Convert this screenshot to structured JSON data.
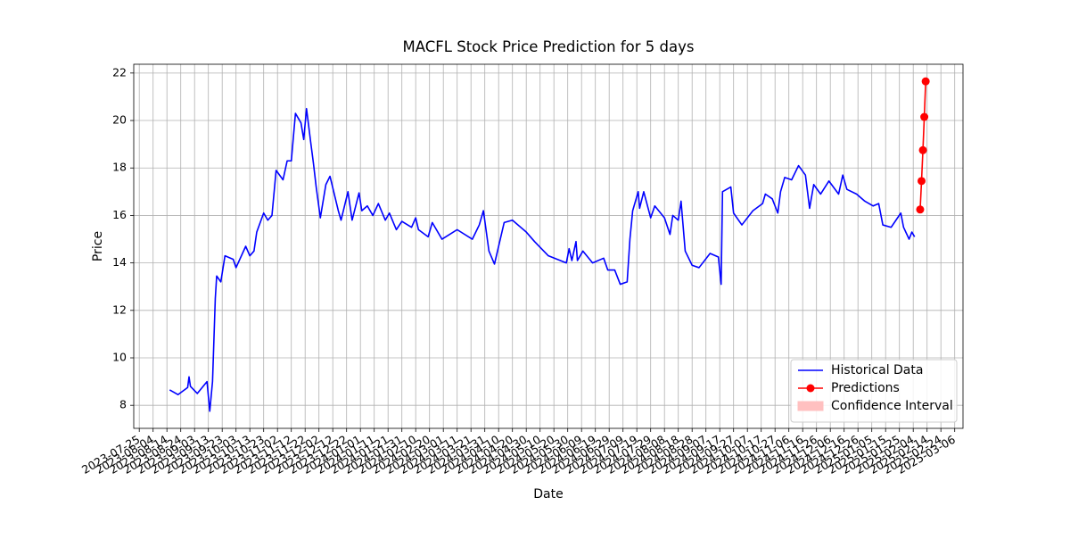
{
  "chart_data": {
    "type": "line",
    "title": "MACFL Stock Price Prediction for 5 days",
    "x_label": "Date",
    "y_label": "Price",
    "xlim": [
      "2023-07-21",
      "2025-03-12"
    ],
    "xticks": [
      "2023-07-25",
      "2023-08-04",
      "2023-08-14",
      "2023-08-24",
      "2023-09-03",
      "2023-09-13",
      "2023-09-23",
      "2023-10-03",
      "2023-10-13",
      "2023-10-23",
      "2023-11-02",
      "2023-11-12",
      "2023-11-22",
      "2023-12-02",
      "2023-12-12",
      "2023-12-22",
      "2024-01-01",
      "2024-01-11",
      "2024-01-21",
      "2024-01-31",
      "2024-02-10",
      "2024-02-20",
      "2024-03-01",
      "2024-03-11",
      "2024-03-21",
      "2024-03-31",
      "2024-04-10",
      "2024-04-20",
      "2024-04-30",
      "2024-05-10",
      "2024-05-20",
      "2024-05-30",
      "2024-06-09",
      "2024-06-19",
      "2024-06-29",
      "2024-07-09",
      "2024-07-19",
      "2024-07-29",
      "2024-08-08",
      "2024-08-18",
      "2024-08-28",
      "2024-09-07",
      "2024-09-17",
      "2024-09-27",
      "2024-10-07",
      "2024-10-17",
      "2024-10-27",
      "2024-11-06",
      "2024-11-16",
      "2024-11-26",
      "2024-12-06",
      "2024-12-16",
      "2024-12-26",
      "2025-01-05",
      "2025-01-15",
      "2025-01-25",
      "2025-02-04",
      "2025-02-14",
      "2025-02-24",
      "2025-03-06"
    ],
    "ylim": [
      7.03,
      22.37
    ],
    "yticks": [
      8,
      10,
      12,
      14,
      16,
      18,
      20,
      22
    ],
    "grid": true,
    "legend": "lower right",
    "series": [
      {
        "name": "Historical Data",
        "color": "#0000ff",
        "marker": false,
        "x": [
          "2023-08-16",
          "2023-08-22",
          "2023-08-29",
          "2023-08-30",
          "2023-08-31",
          "2023-09-05",
          "2023-09-12",
          "2023-09-14",
          "2023-09-16",
          "2023-09-18",
          "2023-09-19",
          "2023-09-22",
          "2023-09-25",
          "2023-10-01",
          "2023-10-03",
          "2023-10-10",
          "2023-10-13",
          "2023-10-16",
          "2023-10-18",
          "2023-10-23",
          "2023-10-26",
          "2023-10-29",
          "2023-11-01",
          "2023-11-06",
          "2023-11-09",
          "2023-11-12",
          "2023-11-15",
          "2023-11-19",
          "2023-11-21",
          "2023-11-23",
          "2023-11-26",
          "2023-11-28",
          "2023-11-30",
          "2023-12-03",
          "2023-12-07",
          "2023-12-10",
          "2023-12-16",
          "2023-12-18",
          "2023-12-23",
          "2023-12-26",
          "2023-12-31",
          "2024-01-02",
          "2024-01-06",
          "2024-01-10",
          "2024-01-14",
          "2024-01-19",
          "2024-01-22",
          "2024-01-27",
          "2024-01-31",
          "2024-02-07",
          "2024-02-10",
          "2024-02-12",
          "2024-02-19",
          "2024-02-22",
          "2024-02-29",
          "2024-03-11",
          "2024-03-22",
          "2024-03-27",
          "2024-03-30",
          "2024-04-03",
          "2024-04-07",
          "2024-04-14",
          "2024-04-20",
          "2024-04-30",
          "2024-05-06",
          "2024-05-16",
          "2024-05-29",
          "2024-05-31",
          "2024-06-02",
          "2024-06-05",
          "2024-06-06",
          "2024-06-10",
          "2024-06-17",
          "2024-06-25",
          "2024-06-28",
          "2024-07-03",
          "2024-07-07",
          "2024-07-12",
          "2024-07-14",
          "2024-07-16",
          "2024-07-20",
          "2024-07-21",
          "2024-07-24",
          "2024-07-29",
          "2024-08-01",
          "2024-08-08",
          "2024-08-12",
          "2024-08-14",
          "2024-08-18",
          "2024-08-20",
          "2024-08-23",
          "2024-08-28",
          "2024-09-02",
          "2024-09-10",
          "2024-09-16",
          "2024-09-18",
          "2024-09-19",
          "2024-09-25",
          "2024-09-27",
          "2024-10-03",
          "2024-10-11",
          "2024-10-18",
          "2024-10-20",
          "2024-10-25",
          "2024-10-29",
          "2024-10-31",
          "2024-11-03",
          "2024-11-08",
          "2024-11-13",
          "2024-11-18",
          "2024-11-21",
          "2024-11-24",
          "2024-11-29",
          "2024-12-05",
          "2024-12-12",
          "2024-12-15",
          "2024-12-18",
          "2024-12-25",
          "2024-12-31",
          "2025-01-06",
          "2025-01-10",
          "2025-01-13",
          "2025-01-19",
          "2025-01-26",
          "2025-01-28",
          "2025-02-01",
          "2025-02-03",
          "2025-02-05"
        ],
        "values": [
          8.65,
          8.45,
          8.75,
          9.2,
          8.8,
          8.5,
          9.0,
          7.75,
          9.0,
          12.5,
          13.45,
          13.2,
          14.3,
          14.15,
          13.8,
          14.7,
          14.3,
          14.5,
          15.3,
          16.1,
          15.8,
          16.0,
          17.9,
          17.5,
          18.3,
          18.3,
          20.3,
          19.9,
          19.2,
          20.5,
          19.1,
          18.2,
          17.2,
          15.9,
          17.3,
          17.65,
          16.2,
          15.8,
          17.0,
          15.8,
          16.95,
          16.2,
          16.4,
          16.0,
          16.5,
          15.8,
          16.1,
          15.4,
          15.75,
          15.5,
          15.9,
          15.4,
          15.1,
          15.7,
          15.0,
          15.4,
          15.0,
          15.6,
          16.2,
          14.5,
          13.95,
          15.7,
          15.8,
          15.3,
          14.9,
          14.3,
          14.0,
          14.6,
          14.1,
          14.9,
          14.1,
          14.5,
          14.0,
          14.2,
          13.7,
          13.7,
          13.1,
          13.2,
          15.0,
          16.2,
          17.0,
          16.3,
          17.0,
          15.9,
          16.4,
          15.9,
          15.2,
          16.0,
          15.8,
          16.6,
          14.5,
          13.9,
          13.8,
          14.4,
          14.25,
          13.1,
          17.0,
          17.2,
          16.1,
          15.6,
          16.2,
          16.5,
          16.9,
          16.7,
          16.1,
          17.0,
          17.6,
          17.5,
          18.1,
          17.7,
          16.3,
          17.3,
          16.9,
          17.45,
          16.9,
          17.7,
          17.1,
          16.9,
          16.6,
          16.4,
          16.5,
          15.6,
          15.5,
          16.1,
          15.5,
          15.0,
          15.3,
          15.1
        ]
      },
      {
        "name": "Predictions",
        "color": "#ff0000",
        "marker": true,
        "x": [
          "2025-02-09",
          "2025-02-10",
          "2025-02-11",
          "2025-02-12",
          "2025-02-13"
        ],
        "values": [
          16.25,
          17.45,
          18.75,
          20.15,
          21.65
        ]
      },
      {
        "name": "Confidence Interval",
        "color": "#ffc0c0",
        "area": true,
        "x": [],
        "values": []
      }
    ]
  }
}
